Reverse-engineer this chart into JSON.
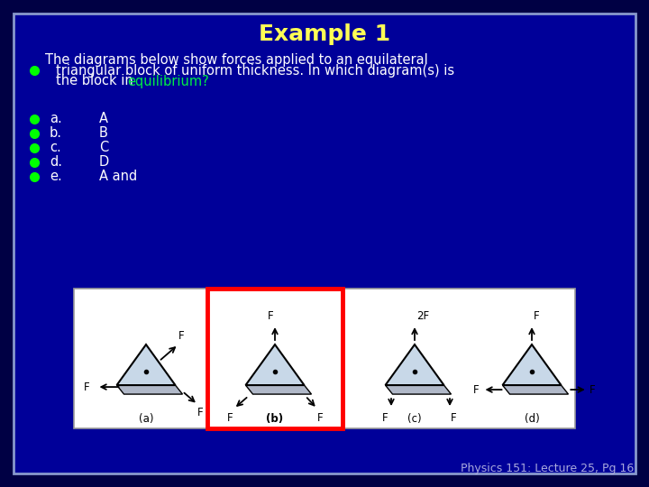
{
  "title": "Example 1",
  "title_color": "#FFFF55",
  "title_fontsize": 18,
  "outer_bg": "#000044",
  "slide_bg": "#000099",
  "border_color": "#8899cc",
  "text_color": "#ffffff",
  "bullet_color": "#00ff00",
  "green_color": "#00ee44",
  "main_text_line1": "The diagrams below show forces applied to an equilateral",
  "main_text_line2": "triangular block of uniform thickness. In which diagram(s) is",
  "main_text_line3_pre": "the block in ",
  "main_text_line3_post": "equilibrium?",
  "answers": [
    [
      "a.",
      "A"
    ],
    [
      "b.",
      "B"
    ],
    [
      "c.",
      "C"
    ],
    [
      "d.",
      "D"
    ],
    [
      "e.",
      "A and"
    ]
  ],
  "footer": "Physics 151: Lecture 25, Pg 16",
  "footer_color": "#aaaadd",
  "footer_fontsize": 9,
  "highlight_box_color": "#ff0000",
  "panel_bg": "#ffffff",
  "panel_border": "#999999",
  "tri_color": "#c8d8e8",
  "tri_edge": "#000000",
  "plate_color": "#b0b8c8",
  "plate_edge": "#000000"
}
